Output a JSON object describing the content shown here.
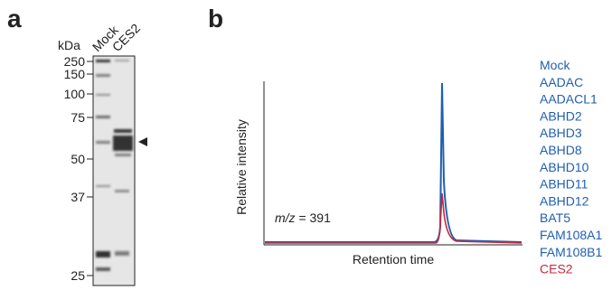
{
  "panels": [
    {
      "label": "a",
      "kda_label": "kDa",
      "lanes": [
        "Mock",
        "CES2"
      ],
      "markers": [
        250,
        150,
        100,
        75,
        50,
        37,
        25
      ]
    },
    {
      "label": "b",
      "y_label": "Relative intensity",
      "x_label": "Retention time",
      "annotation": {
        "italic": "m/z",
        "text": "= 391"
      },
      "legend": [
        {
          "name": "Mock",
          "color": "#1f5fb0"
        },
        {
          "name": "AADAC",
          "color": "#1f5fb0"
        },
        {
          "name": "AADACL1",
          "color": "#1f5fb0"
        },
        {
          "name": "ABHD2",
          "color": "#1f5fb0"
        },
        {
          "name": "ABHD3",
          "color": "#1f5fb0"
        },
        {
          "name": "ABHD8",
          "color": "#1f5fb0"
        },
        {
          "name": "ABHD10",
          "color": "#1f5fb0"
        },
        {
          "name": "ABHD11",
          "color": "#1f5fb0"
        },
        {
          "name": "ABHD12",
          "color": "#1f5fb0"
        },
        {
          "name": "BAT5",
          "color": "#1f5fb0"
        },
        {
          "name": "FAM108A1",
          "color": "#1f5fb0"
        },
        {
          "name": "FAM108B1",
          "color": "#1f5fb0"
        },
        {
          "name": "CES2",
          "color": "#c8283c"
        }
      ]
    }
  ]
}
